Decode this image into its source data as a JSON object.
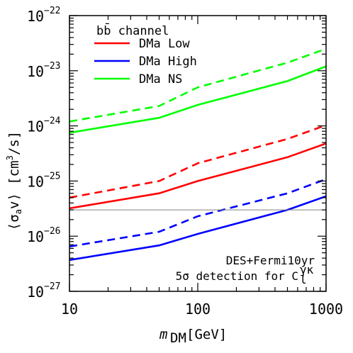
{
  "chart_data": {
    "type": "line",
    "xscale": "log",
    "yscale": "log",
    "xlim": [
      10,
      1000
    ],
    "ylim": [
      1e-27,
      1e-22
    ],
    "xlabel_main": "m",
    "xlabel_sub": "DM",
    "xlabel_unit": " [GeV]",
    "ylabel_main": "⟨σ",
    "ylabel_sub": "a",
    "ylabel_tail": "v⟩ [cm",
    "ylabel_sup": "3",
    "ylabel_end": "/s]",
    "x_ticks": [
      {
        "value": 10,
        "label": "10"
      },
      {
        "value": 100,
        "label": "100"
      },
      {
        "value": 1000,
        "label": "1000"
      }
    ],
    "y_ticks": [
      {
        "value": 1e-22,
        "base": "10",
        "exp": "−22"
      },
      {
        "value": 1e-23,
        "base": "10",
        "exp": "−23"
      },
      {
        "value": 1e-24,
        "base": "10",
        "exp": "−24"
      },
      {
        "value": 1e-25,
        "base": "10",
        "exp": "−25"
      },
      {
        "value": 1e-26,
        "base": "10",
        "exp": "−26"
      },
      {
        "value": 1e-27,
        "base": "10",
        "exp": "−27"
      }
    ],
    "legend_title": "bb̄ channel",
    "x": [
      10,
      50,
      100,
      500,
      1000
    ],
    "series": [
      {
        "name": "DMa Low",
        "color": "#ff0000",
        "style": "solid",
        "in_legend": true,
        "values": [
          3.2e-26,
          6e-26,
          1e-25,
          2.7e-25,
          4.8e-25
        ]
      },
      {
        "name": "DMa High",
        "color": "#0000ff",
        "style": "solid",
        "in_legend": true,
        "values": [
          3.7e-27,
          6.8e-27,
          1.1e-26,
          3e-26,
          5.3e-26
        ]
      },
      {
        "name": "DMa NS",
        "color": "#00ff00",
        "style": "solid",
        "in_legend": true,
        "values": [
          7.5e-25,
          1.4e-24,
          2.4e-24,
          6.5e-24,
          1.2e-23
        ]
      },
      {
        "color": "#ff0000",
        "style": "dashed",
        "in_legend": false,
        "values": [
          5e-26,
          1e-25,
          2.1e-25,
          5.8e-25,
          1.03e-24
        ]
      },
      {
        "color": "#0000ff",
        "style": "dashed",
        "in_legend": false,
        "values": [
          6.5e-27,
          1.2e-26,
          2.3e-26,
          6e-26,
          1.08e-25
        ]
      },
      {
        "color": "#00ff00",
        "style": "dashed",
        "in_legend": false,
        "values": [
          1.2e-24,
          2.3e-24,
          5e-24,
          1.4e-23,
          2.5e-23
        ]
      }
    ],
    "reference_line": {
      "value": 3e-26,
      "color": "#808080"
    },
    "annotation_line1": "DES+Fermi10yr",
    "annotation_line2_prefix": "5σ detection for C",
    "annotation_sub": "l",
    "annotation_sup": "γκ",
    "grid": false
  }
}
